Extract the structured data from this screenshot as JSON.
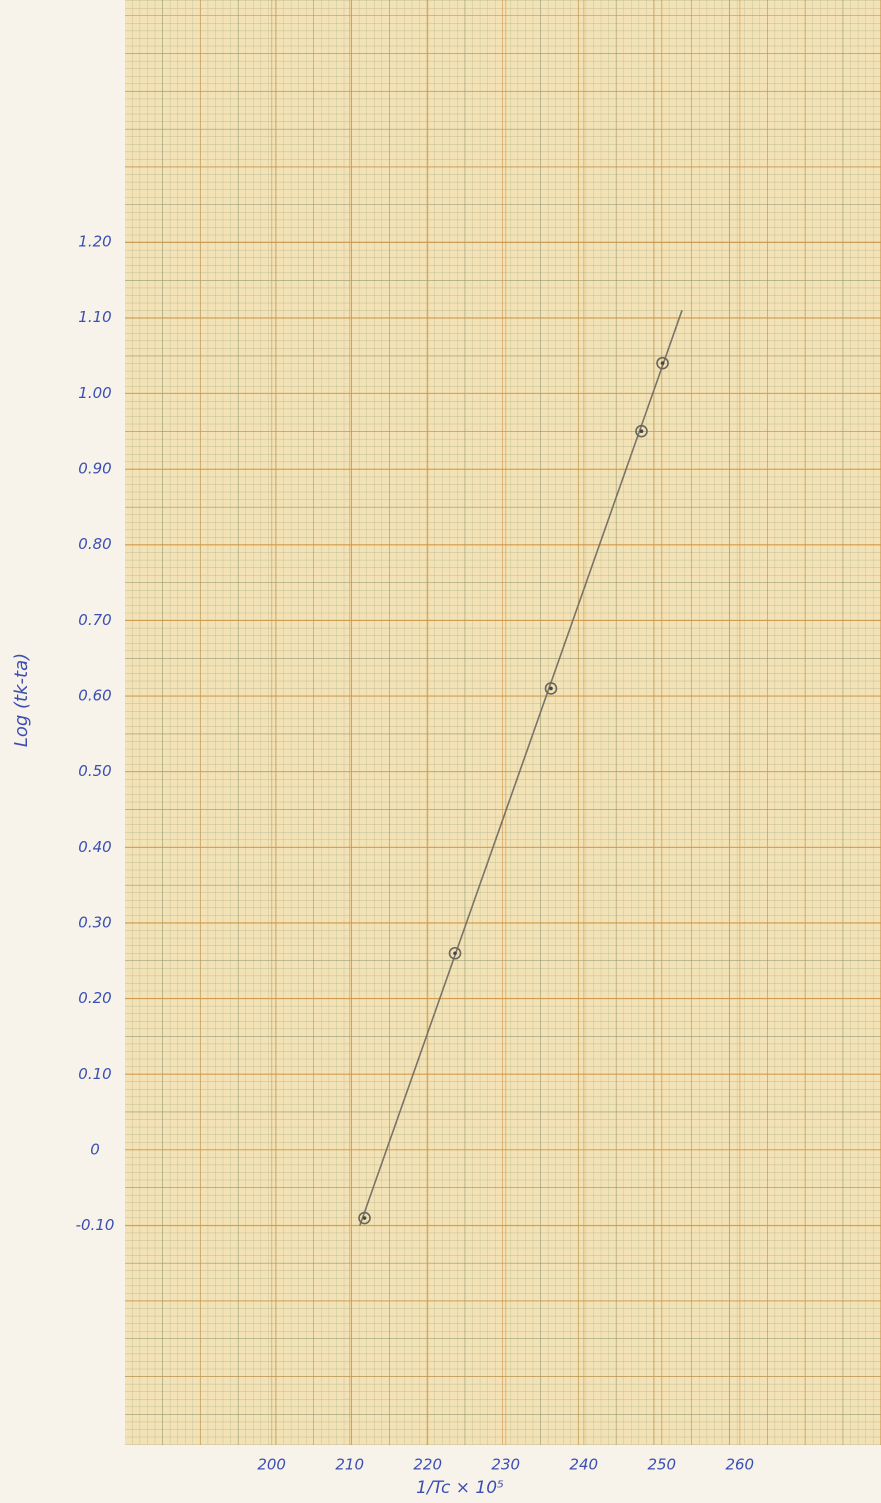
{
  "chart_data": {
    "type": "scatter",
    "x_label": "1/Tc × 10⁵",
    "y_label": "Log (tk-ta)",
    "x": [
      211.9,
      223.5,
      235.8,
      247.4,
      250.1
    ],
    "y": [
      -0.09,
      0.26,
      0.61,
      0.95,
      1.04
    ],
    "fit_line": {
      "x": [
        211.3,
        252.6
      ],
      "y": [
        -0.1,
        1.11
      ]
    },
    "xlim": [
      181.2,
      278.1
    ],
    "ylim": [
      -0.39,
      1.52
    ],
    "xticks": [
      200,
      210,
      220,
      230,
      240,
      250,
      260
    ],
    "yticks": [
      {
        "value": 1.2,
        "label": "1.20"
      },
      {
        "value": 1.1,
        "label": "1.10"
      },
      {
        "value": 1.0,
        "label": "1.00"
      },
      {
        "value": 0.9,
        "label": "0.90"
      },
      {
        "value": 0.8,
        "label": "0.80"
      },
      {
        "value": 0.7,
        "label": "0.70"
      },
      {
        "value": 0.6,
        "label": "0.60"
      },
      {
        "value": 0.5,
        "label": "0.50"
      },
      {
        "value": 0.4,
        "label": "0.40"
      },
      {
        "value": 0.3,
        "label": "0.30"
      },
      {
        "value": 0.2,
        "label": "0.20"
      },
      {
        "value": 0.1,
        "label": "0.10"
      },
      0,
      {
        "value": -0.1,
        "label": "-0.10"
      }
    ],
    "grid": true
  }
}
